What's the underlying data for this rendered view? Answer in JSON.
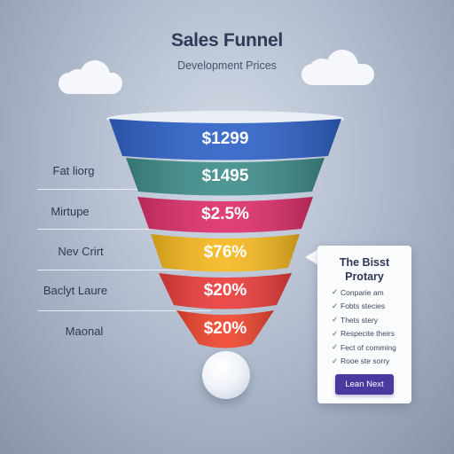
{
  "header": {
    "title": "Sales Funnel",
    "subtitle": "Development Prices"
  },
  "funnel": {
    "stages": [
      {
        "value": "$1299",
        "label": "",
        "color": "#2f63c8"
      },
      {
        "value": "$1495",
        "label": "Fat liorg",
        "color": "#3f8e8b"
      },
      {
        "value": "$2.5%",
        "label": "Mirtupe",
        "color": "#de2f6a"
      },
      {
        "value": "$76%",
        "label": "Nev Crirt",
        "color": "#f6b920"
      },
      {
        "value": "$20%",
        "label": "Baclyt Laure",
        "color": "#ea3d3b"
      },
      {
        "value": "$20%",
        "label": "Maonal",
        "color": "#f0452d"
      }
    ]
  },
  "callout": {
    "title_line1": "The Bisst",
    "title_line2": "Protary",
    "items": [
      "Conparie am",
      "Fobts stecies",
      "Thets stery",
      "Respecite theirs",
      "Fect of comming",
      "Rooe ste sorry"
    ],
    "button_label": "Lean Next",
    "button_color": "#4a3aa0"
  }
}
